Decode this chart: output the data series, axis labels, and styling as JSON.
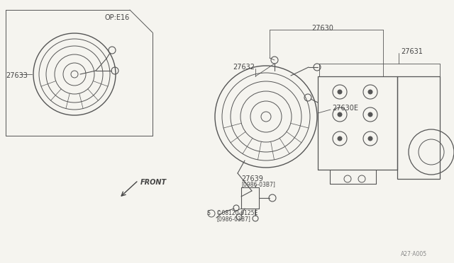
{
  "bg_color": "#f5f4ef",
  "line_color": "#555555",
  "text_color": "#444444",
  "font_size": 7,
  "font_size_small": 5.5,
  "labels": {
    "op_e16": "OP:E16",
    "27633": "27633",
    "27630": "27630",
    "27631": "27631",
    "27632": "27632",
    "27630E": "27630E",
    "27639": "27639",
    "27639_bracket": "[0986-03B7]",
    "bolt": "©08120-6125E",
    "bolt_bracket": "[0986-03B7]",
    "front": "FRONT",
    "ref": "A27·A005"
  }
}
